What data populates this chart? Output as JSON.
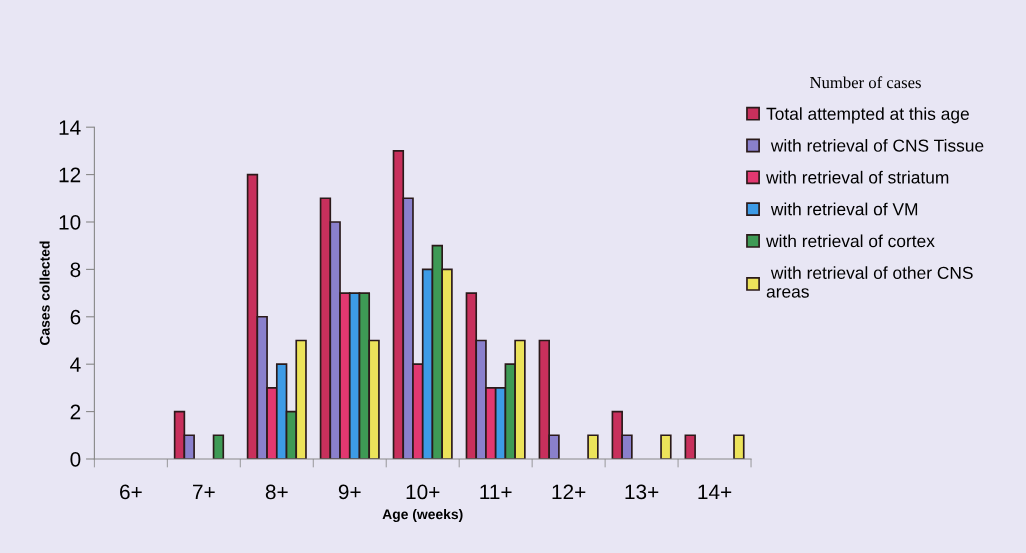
{
  "chart_data": {
    "type": "bar",
    "xlabel": "Age (weeks)",
    "ylabel": "Cases collected",
    "legend_title": "Number of cases",
    "categories": [
      "6+",
      "7+",
      "8+",
      "9+",
      "10+",
      "11+",
      "12+",
      "13+",
      "14+"
    ],
    "series": [
      {
        "name": "Total attempted at this age",
        "color": "#c8305c",
        "values": [
          null,
          2,
          12,
          11,
          13,
          7,
          5,
          2,
          1
        ]
      },
      {
        "name": " with retrieval of CNS Tissue",
        "color": "#8a80cc",
        "values": [
          null,
          1,
          6,
          10,
          11,
          5,
          1,
          1,
          null
        ]
      },
      {
        "name": "with retrieval of striatum",
        "color": "#e23870",
        "values": [
          null,
          null,
          3,
          7,
          4,
          3,
          null,
          null,
          null
        ]
      },
      {
        "name": " with retrieval of VM",
        "color": "#3d9be6",
        "values": [
          null,
          null,
          4,
          7,
          8,
          3,
          null,
          null,
          null
        ]
      },
      {
        "name": "with retrieval of cortex",
        "color": "#3e9a55",
        "values": [
          null,
          1,
          2,
          7,
          9,
          4,
          null,
          null,
          null
        ]
      },
      {
        "name": " with retrieval of other CNS\nareas",
        "color": "#ece35a",
        "values": [
          null,
          null,
          5,
          5,
          8,
          5,
          1,
          1,
          1
        ]
      }
    ],
    "ylim": [
      0,
      14
    ],
    "yticks": [
      0,
      2,
      4,
      6,
      8,
      10,
      12,
      14
    ],
    "grid": false,
    "legend": "right"
  }
}
